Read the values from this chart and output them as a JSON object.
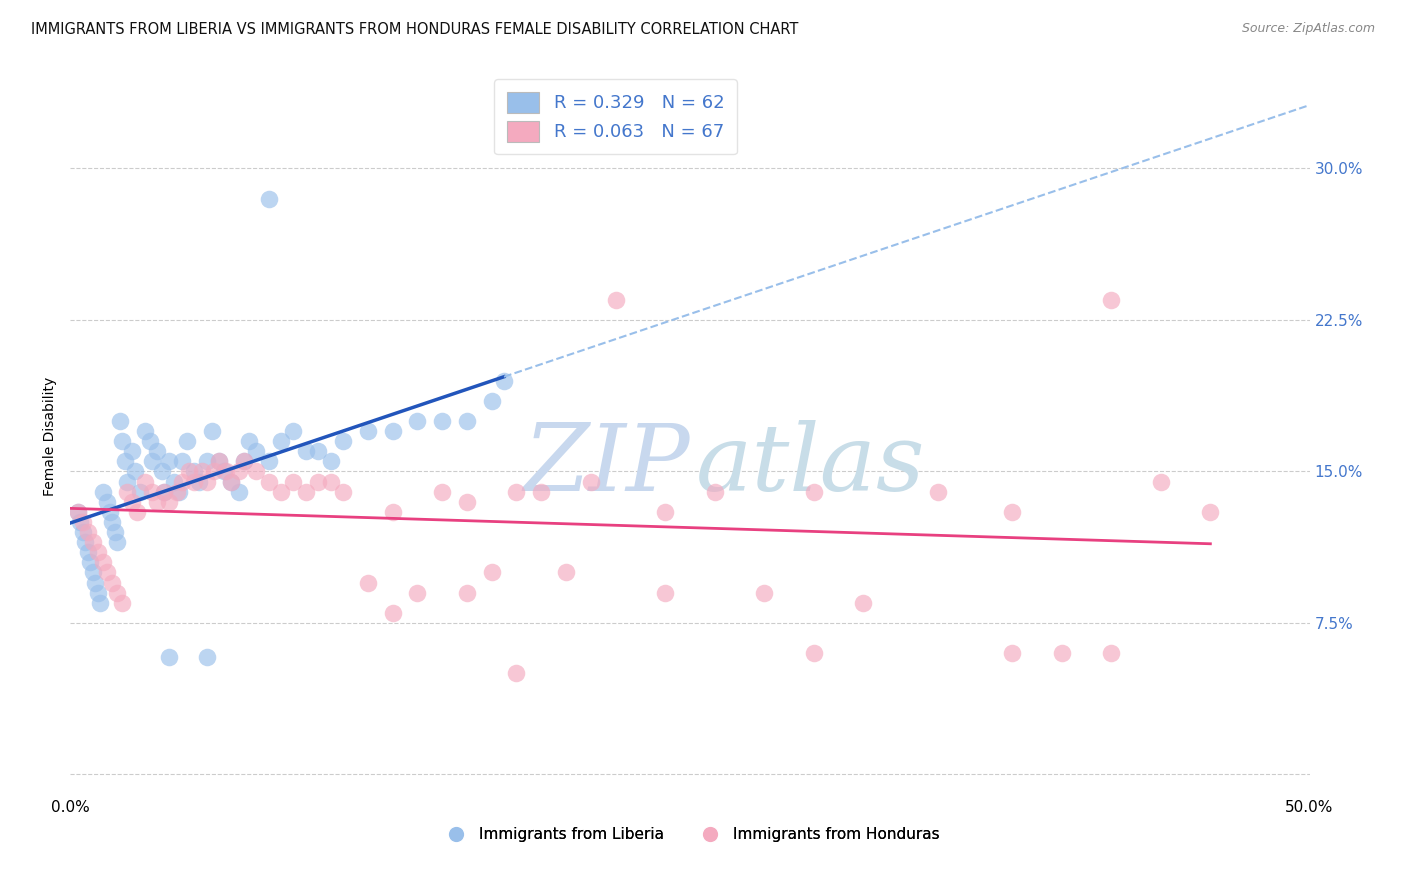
{
  "title": "IMMIGRANTS FROM LIBERIA VS IMMIGRANTS FROM HONDURAS FEMALE DISABILITY CORRELATION CHART",
  "source": "Source: ZipAtlas.com",
  "ylabel": "Female Disability",
  "xlim": [
    0.0,
    0.5
  ],
  "ylim": [
    -0.01,
    0.345
  ],
  "xticks": [
    0.0,
    0.1,
    0.2,
    0.3,
    0.4,
    0.5
  ],
  "xticklabels": [
    "0.0%",
    "",
    "",
    "",
    "",
    "50.0%"
  ],
  "yticks": [
    0.0,
    0.075,
    0.15,
    0.225,
    0.3
  ],
  "yticklabels": [
    "",
    "7.5%",
    "15.0%",
    "22.5%",
    "30.0%"
  ],
  "blue_color": "#99BFEA",
  "pink_color": "#F4AABF",
  "blue_line_color": "#2255BB",
  "pink_line_color": "#E84080",
  "dash_color": "#99BFEA",
  "right_tick_color": "#4477CC",
  "legend_label1": "Immigrants from Liberia",
  "legend_label2": "Immigrants from Honduras",
  "watermark_zip": "ZIP",
  "watermark_atlas": "atlas",
  "blue_R": 0.329,
  "blue_N": 62,
  "pink_R": 0.063,
  "pink_N": 67,
  "blue_x": [
    0.003,
    0.004,
    0.005,
    0.006,
    0.007,
    0.008,
    0.009,
    0.01,
    0.011,
    0.012,
    0.013,
    0.015,
    0.016,
    0.017,
    0.018,
    0.019,
    0.02,
    0.021,
    0.022,
    0.023,
    0.025,
    0.026,
    0.028,
    0.03,
    0.032,
    0.033,
    0.035,
    0.037,
    0.038,
    0.04,
    0.042,
    0.044,
    0.045,
    0.047,
    0.05,
    0.052,
    0.055,
    0.057,
    0.06,
    0.062,
    0.065,
    0.068,
    0.07,
    0.072,
    0.075,
    0.08,
    0.085,
    0.09,
    0.095,
    0.1,
    0.105,
    0.11,
    0.12,
    0.13,
    0.14,
    0.15,
    0.16,
    0.17,
    0.175,
    0.08,
    0.04,
    0.055
  ],
  "blue_y": [
    0.13,
    0.125,
    0.12,
    0.115,
    0.11,
    0.105,
    0.1,
    0.095,
    0.09,
    0.085,
    0.14,
    0.135,
    0.13,
    0.125,
    0.12,
    0.115,
    0.175,
    0.165,
    0.155,
    0.145,
    0.16,
    0.15,
    0.14,
    0.17,
    0.165,
    0.155,
    0.16,
    0.15,
    0.14,
    0.155,
    0.145,
    0.14,
    0.155,
    0.165,
    0.15,
    0.145,
    0.155,
    0.17,
    0.155,
    0.15,
    0.145,
    0.14,
    0.155,
    0.165,
    0.16,
    0.155,
    0.165,
    0.17,
    0.16,
    0.16,
    0.155,
    0.165,
    0.17,
    0.17,
    0.175,
    0.175,
    0.175,
    0.185,
    0.195,
    0.285,
    0.058,
    0.058
  ],
  "pink_x": [
    0.003,
    0.005,
    0.007,
    0.009,
    0.011,
    0.013,
    0.015,
    0.017,
    0.019,
    0.021,
    0.023,
    0.025,
    0.027,
    0.03,
    0.033,
    0.035,
    0.038,
    0.04,
    0.043,
    0.045,
    0.048,
    0.05,
    0.053,
    0.055,
    0.058,
    0.06,
    0.063,
    0.065,
    0.068,
    0.07,
    0.075,
    0.08,
    0.085,
    0.09,
    0.095,
    0.1,
    0.105,
    0.11,
    0.12,
    0.13,
    0.14,
    0.15,
    0.16,
    0.17,
    0.18,
    0.19,
    0.2,
    0.21,
    0.22,
    0.24,
    0.26,
    0.28,
    0.3,
    0.32,
    0.35,
    0.38,
    0.4,
    0.42,
    0.44,
    0.46,
    0.13,
    0.16,
    0.18,
    0.24,
    0.3,
    0.38,
    0.42
  ],
  "pink_y": [
    0.13,
    0.125,
    0.12,
    0.115,
    0.11,
    0.105,
    0.1,
    0.095,
    0.09,
    0.085,
    0.14,
    0.135,
    0.13,
    0.145,
    0.14,
    0.135,
    0.14,
    0.135,
    0.14,
    0.145,
    0.15,
    0.145,
    0.15,
    0.145,
    0.15,
    0.155,
    0.15,
    0.145,
    0.15,
    0.155,
    0.15,
    0.145,
    0.14,
    0.145,
    0.14,
    0.145,
    0.145,
    0.14,
    0.095,
    0.13,
    0.09,
    0.14,
    0.135,
    0.1,
    0.14,
    0.14,
    0.1,
    0.145,
    0.235,
    0.13,
    0.14,
    0.09,
    0.14,
    0.085,
    0.14,
    0.13,
    0.06,
    0.235,
    0.145,
    0.13,
    0.08,
    0.09,
    0.05,
    0.09,
    0.06,
    0.06,
    0.06
  ]
}
